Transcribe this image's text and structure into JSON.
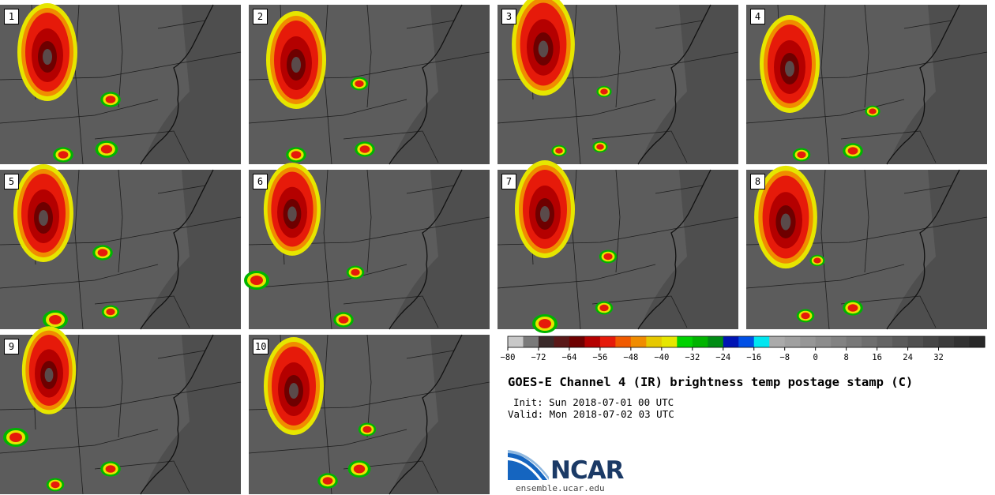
{
  "chart_data": {
    "type": "heatmap",
    "title": "GOES-E Channel 4 (IR) brightness temp postage stamp (C)",
    "init_label": "Init: Sun 2018-07-01 00 UTC",
    "valid_label": "Valid: Mon 2018-07-02 03 UTC",
    "panels": [
      "1",
      "2",
      "3",
      "4",
      "5",
      "6",
      "7",
      "8",
      "9",
      "10"
    ],
    "colorbar": {
      "range": [
        -80,
        44
      ],
      "tick_values": [
        -80,
        -72,
        -64,
        -56,
        -48,
        -40,
        -32,
        -24,
        -16,
        -8,
        0,
        8,
        16,
        24,
        32
      ],
      "tick_labels": [
        "−80",
        "−72",
        "−64",
        "−56",
        "−48",
        "−40",
        "−32",
        "−24",
        "−16",
        "−8",
        "0",
        "8",
        "16",
        "24",
        "32"
      ],
      "colors": [
        "#c8c8c8",
        "#7a7a7a",
        "#3a2a2a",
        "#5a1818",
        "#6e0000",
        "#b40000",
        "#e61a0a",
        "#f05a00",
        "#f08c00",
        "#e6c800",
        "#e6e600",
        "#00d200",
        "#00b400",
        "#008c14",
        "#0014b4",
        "#0050e6",
        "#00e6f0",
        "#aaaaaa",
        "#a0a0a0",
        "#969696",
        "#8c8c8c",
        "#828282",
        "#787878",
        "#6e6e6e",
        "#646464",
        "#5a5a5a",
        "#505050",
        "#464646",
        "#3c3c3c",
        "#323232",
        "#282828"
      ]
    }
  },
  "logo_text": "NCAR",
  "url_text": "ensemble.ucar.edu"
}
